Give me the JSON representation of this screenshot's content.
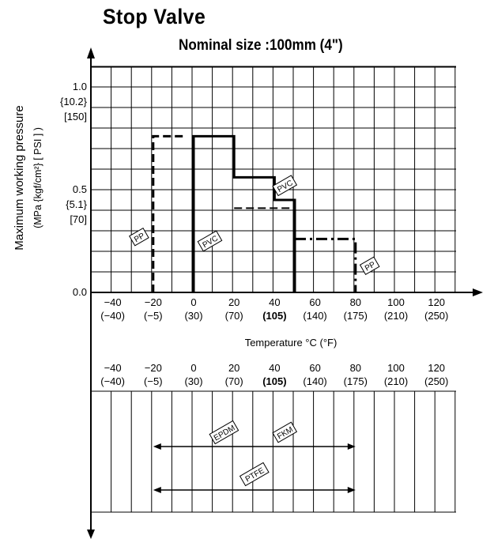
{
  "title": "Stop Valve",
  "subtitle": {
    "label": "Nominal size :",
    "value": "100mm (4\")"
  },
  "chart_data": {
    "type": "line",
    "x_ticks": [
      {
        "c": "-40",
        "f": "(-40)",
        "bold": false
      },
      {
        "c": "-20",
        "f": "(-5)",
        "bold": false
      },
      {
        "c": "0",
        "f": "(30)",
        "bold": false
      },
      {
        "c": "20",
        "f": "(70)",
        "bold": false
      },
      {
        "c": "40",
        "f": "(105)",
        "bold": true
      },
      {
        "c": "60",
        "f": "(140)",
        "bold": false
      },
      {
        "c": "80",
        "f": "(175)",
        "bold": false
      },
      {
        "c": "100",
        "f": "(210)",
        "bold": false
      },
      {
        "c": "120",
        "f": "(250)",
        "bold": false
      }
    ],
    "x_unit_label": "Temperature °C (°F)",
    "y_label_line1": "Maximum working pressure",
    "y_label_line2": "(MPa {kgf/cm²} [ PSI ] )",
    "y_tick_labels": [
      {
        "value": 1.0,
        "lines": [
          "1.0",
          "{10.2}",
          "[150]"
        ]
      },
      {
        "value": 0.5,
        "lines": [
          "0.5",
          "{5.1}",
          "[70]"
        ]
      },
      {
        "value": 0.0,
        "lines": [
          "0.0"
        ]
      }
    ],
    "xlim": [
      -60,
      130
    ],
    "ylim": [
      0,
      1.1
    ],
    "grid": true,
    "series": [
      {
        "name": "PP",
        "style": "dashed",
        "points": [
          [
            -20,
            0.0
          ],
          [
            -20,
            0.76
          ],
          [
            -5,
            0.76
          ]
        ]
      },
      {
        "name": "PVC",
        "style": "solid",
        "points": [
          [
            0,
            0.0
          ],
          [
            0,
            0.76
          ],
          [
            20,
            0.76
          ],
          [
            20,
            0.56
          ],
          [
            40,
            0.56
          ],
          [
            40,
            0.45
          ],
          [
            50,
            0.45
          ],
          [
            50,
            0.0
          ]
        ]
      },
      {
        "name": "PVC",
        "style": "dashed",
        "points": [
          [
            20,
            0.41
          ],
          [
            50,
            0.41
          ]
        ]
      },
      {
        "name": "PP",
        "style": "dash-dot",
        "points": [
          [
            50,
            0.26
          ],
          [
            80,
            0.26
          ],
          [
            80,
            0.0
          ]
        ]
      }
    ],
    "material_tags": [
      {
        "text": "PP",
        "x": -27,
        "y": 0.27
      },
      {
        "text": "PVC",
        "x": 8,
        "y": 0.25
      },
      {
        "text": "PVC",
        "x": 45,
        "y": 0.52
      },
      {
        "text": "PP",
        "x": 87,
        "y": 0.13
      }
    ],
    "seal_ranges": [
      {
        "tags": [
          "EPDM",
          "FKM"
        ],
        "from": -20,
        "to": 80
      },
      {
        "tags": [
          "PTFE"
        ],
        "from": -20,
        "to": 80
      }
    ]
  }
}
